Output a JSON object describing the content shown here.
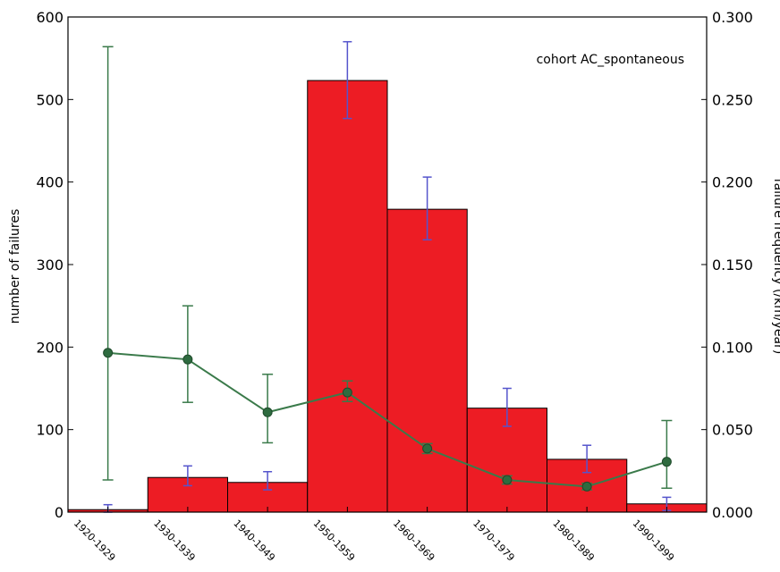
{
  "chart_data": {
    "type": "bar",
    "annotation": "cohort AC_spontaneous",
    "categories": [
      "1920-1929",
      "1930-1939",
      "1940-1949",
      "1950-1959",
      "1960-1969",
      "1970-1979",
      "1980-1989",
      "1990-1999"
    ],
    "ylabel_left": "number of failures",
    "ylabel_right": "failure frequency (/km/year)",
    "ylim_left": [
      0,
      600
    ],
    "ylim_right": [
      0,
      0.3
    ],
    "yticks_left": [
      "0",
      "100",
      "200",
      "300",
      "400",
      "500",
      "600"
    ],
    "yticks_right": [
      "0.000",
      "0.050",
      "0.100",
      "0.150",
      "0.200",
      "0.250",
      "0.300"
    ],
    "bars": {
      "axis": "left",
      "color": "#ed1c24",
      "values": [
        3,
        42,
        36,
        523,
        367,
        126,
        64,
        10
      ],
      "err_low": [
        0,
        32,
        27,
        477,
        330,
        104,
        48,
        2
      ],
      "err_high": [
        9,
        56,
        49,
        570,
        406,
        150,
        81,
        18
      ],
      "errorbar_color": "#5555cc"
    },
    "series": [
      {
        "axis": "right",
        "color": "#3a7a4a",
        "marker_color": "#2e6b3f",
        "values": [
          0.0965,
          0.0925,
          0.0605,
          0.0725,
          0.0385,
          0.0195,
          0.0155,
          0.0305
        ],
        "err_low": [
          0.0195,
          0.0665,
          0.042,
          0.067,
          0.0355,
          0.017,
          0.0135,
          0.0145
        ],
        "err_high": [
          0.282,
          0.125,
          0.0835,
          0.0795,
          0.0415,
          0.022,
          0.0175,
          0.0555
        ]
      }
    ],
    "grid": false,
    "legend": "none"
  }
}
